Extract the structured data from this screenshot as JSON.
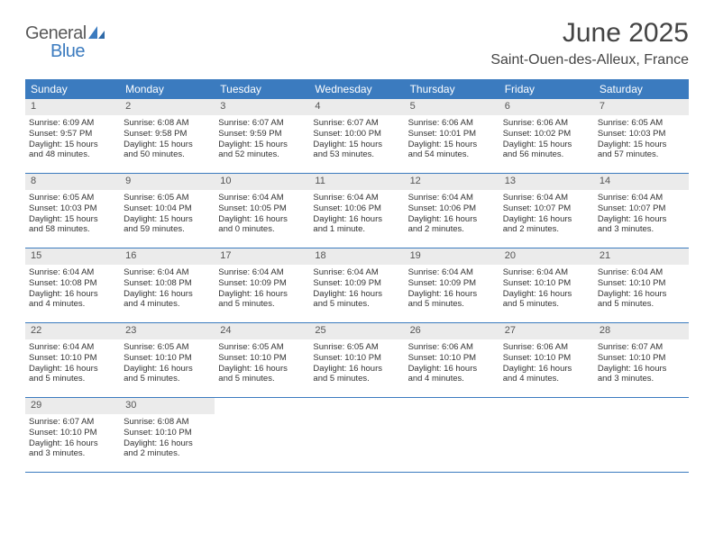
{
  "brand": {
    "word1": "General",
    "word2": "Blue",
    "accent_color": "#3b7bbf",
    "text_color": "#5a5a5a"
  },
  "title": "June 2025",
  "location": "Saint-Ouen-des-Alleux, France",
  "colors": {
    "header_bg": "#3b7bbf",
    "header_text": "#ffffff",
    "daynum_bg": "#ebebeb",
    "border": "#3b7bbf",
    "body_text": "#333333",
    "page_bg": "#ffffff"
  },
  "typography": {
    "title_fontsize": 30,
    "location_fontsize": 16,
    "dayheader_fontsize": 12,
    "cell_fontsize": 9.5
  },
  "day_names": [
    "Sunday",
    "Monday",
    "Tuesday",
    "Wednesday",
    "Thursday",
    "Friday",
    "Saturday"
  ],
  "weeks": [
    [
      {
        "n": "1",
        "sunrise": "Sunrise: 6:09 AM",
        "sunset": "Sunset: 9:57 PM",
        "d1": "Daylight: 15 hours",
        "d2": "and 48 minutes."
      },
      {
        "n": "2",
        "sunrise": "Sunrise: 6:08 AM",
        "sunset": "Sunset: 9:58 PM",
        "d1": "Daylight: 15 hours",
        "d2": "and 50 minutes."
      },
      {
        "n": "3",
        "sunrise": "Sunrise: 6:07 AM",
        "sunset": "Sunset: 9:59 PM",
        "d1": "Daylight: 15 hours",
        "d2": "and 52 minutes."
      },
      {
        "n": "4",
        "sunrise": "Sunrise: 6:07 AM",
        "sunset": "Sunset: 10:00 PM",
        "d1": "Daylight: 15 hours",
        "d2": "and 53 minutes."
      },
      {
        "n": "5",
        "sunrise": "Sunrise: 6:06 AM",
        "sunset": "Sunset: 10:01 PM",
        "d1": "Daylight: 15 hours",
        "d2": "and 54 minutes."
      },
      {
        "n": "6",
        "sunrise": "Sunrise: 6:06 AM",
        "sunset": "Sunset: 10:02 PM",
        "d1": "Daylight: 15 hours",
        "d2": "and 56 minutes."
      },
      {
        "n": "7",
        "sunrise": "Sunrise: 6:05 AM",
        "sunset": "Sunset: 10:03 PM",
        "d1": "Daylight: 15 hours",
        "d2": "and 57 minutes."
      }
    ],
    [
      {
        "n": "8",
        "sunrise": "Sunrise: 6:05 AM",
        "sunset": "Sunset: 10:03 PM",
        "d1": "Daylight: 15 hours",
        "d2": "and 58 minutes."
      },
      {
        "n": "9",
        "sunrise": "Sunrise: 6:05 AM",
        "sunset": "Sunset: 10:04 PM",
        "d1": "Daylight: 15 hours",
        "d2": "and 59 minutes."
      },
      {
        "n": "10",
        "sunrise": "Sunrise: 6:04 AM",
        "sunset": "Sunset: 10:05 PM",
        "d1": "Daylight: 16 hours",
        "d2": "and 0 minutes."
      },
      {
        "n": "11",
        "sunrise": "Sunrise: 6:04 AM",
        "sunset": "Sunset: 10:06 PM",
        "d1": "Daylight: 16 hours",
        "d2": "and 1 minute."
      },
      {
        "n": "12",
        "sunrise": "Sunrise: 6:04 AM",
        "sunset": "Sunset: 10:06 PM",
        "d1": "Daylight: 16 hours",
        "d2": "and 2 minutes."
      },
      {
        "n": "13",
        "sunrise": "Sunrise: 6:04 AM",
        "sunset": "Sunset: 10:07 PM",
        "d1": "Daylight: 16 hours",
        "d2": "and 2 minutes."
      },
      {
        "n": "14",
        "sunrise": "Sunrise: 6:04 AM",
        "sunset": "Sunset: 10:07 PM",
        "d1": "Daylight: 16 hours",
        "d2": "and 3 minutes."
      }
    ],
    [
      {
        "n": "15",
        "sunrise": "Sunrise: 6:04 AM",
        "sunset": "Sunset: 10:08 PM",
        "d1": "Daylight: 16 hours",
        "d2": "and 4 minutes."
      },
      {
        "n": "16",
        "sunrise": "Sunrise: 6:04 AM",
        "sunset": "Sunset: 10:08 PM",
        "d1": "Daylight: 16 hours",
        "d2": "and 4 minutes."
      },
      {
        "n": "17",
        "sunrise": "Sunrise: 6:04 AM",
        "sunset": "Sunset: 10:09 PM",
        "d1": "Daylight: 16 hours",
        "d2": "and 5 minutes."
      },
      {
        "n": "18",
        "sunrise": "Sunrise: 6:04 AM",
        "sunset": "Sunset: 10:09 PM",
        "d1": "Daylight: 16 hours",
        "d2": "and 5 minutes."
      },
      {
        "n": "19",
        "sunrise": "Sunrise: 6:04 AM",
        "sunset": "Sunset: 10:09 PM",
        "d1": "Daylight: 16 hours",
        "d2": "and 5 minutes."
      },
      {
        "n": "20",
        "sunrise": "Sunrise: 6:04 AM",
        "sunset": "Sunset: 10:10 PM",
        "d1": "Daylight: 16 hours",
        "d2": "and 5 minutes."
      },
      {
        "n": "21",
        "sunrise": "Sunrise: 6:04 AM",
        "sunset": "Sunset: 10:10 PM",
        "d1": "Daylight: 16 hours",
        "d2": "and 5 minutes."
      }
    ],
    [
      {
        "n": "22",
        "sunrise": "Sunrise: 6:04 AM",
        "sunset": "Sunset: 10:10 PM",
        "d1": "Daylight: 16 hours",
        "d2": "and 5 minutes."
      },
      {
        "n": "23",
        "sunrise": "Sunrise: 6:05 AM",
        "sunset": "Sunset: 10:10 PM",
        "d1": "Daylight: 16 hours",
        "d2": "and 5 minutes."
      },
      {
        "n": "24",
        "sunrise": "Sunrise: 6:05 AM",
        "sunset": "Sunset: 10:10 PM",
        "d1": "Daylight: 16 hours",
        "d2": "and 5 minutes."
      },
      {
        "n": "25",
        "sunrise": "Sunrise: 6:05 AM",
        "sunset": "Sunset: 10:10 PM",
        "d1": "Daylight: 16 hours",
        "d2": "and 5 minutes."
      },
      {
        "n": "26",
        "sunrise": "Sunrise: 6:06 AM",
        "sunset": "Sunset: 10:10 PM",
        "d1": "Daylight: 16 hours",
        "d2": "and 4 minutes."
      },
      {
        "n": "27",
        "sunrise": "Sunrise: 6:06 AM",
        "sunset": "Sunset: 10:10 PM",
        "d1": "Daylight: 16 hours",
        "d2": "and 4 minutes."
      },
      {
        "n": "28",
        "sunrise": "Sunrise: 6:07 AM",
        "sunset": "Sunset: 10:10 PM",
        "d1": "Daylight: 16 hours",
        "d2": "and 3 minutes."
      }
    ],
    [
      {
        "n": "29",
        "sunrise": "Sunrise: 6:07 AM",
        "sunset": "Sunset: 10:10 PM",
        "d1": "Daylight: 16 hours",
        "d2": "and 3 minutes."
      },
      {
        "n": "30",
        "sunrise": "Sunrise: 6:08 AM",
        "sunset": "Sunset: 10:10 PM",
        "d1": "Daylight: 16 hours",
        "d2": "and 2 minutes."
      },
      null,
      null,
      null,
      null,
      null
    ]
  ]
}
